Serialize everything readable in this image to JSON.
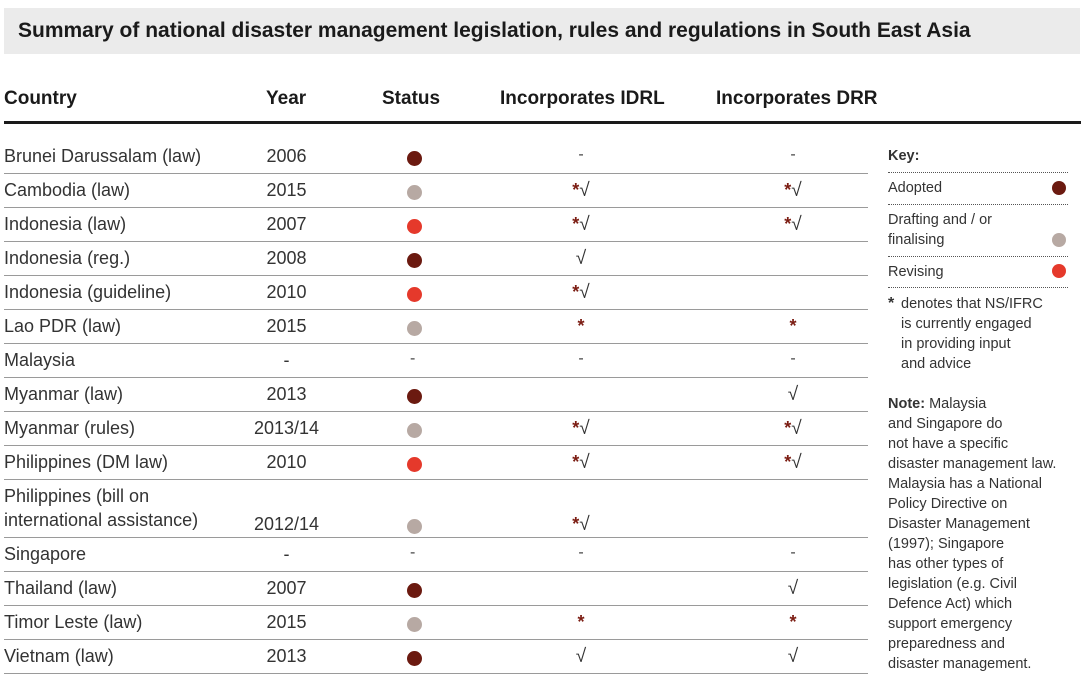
{
  "title": "Summary of national disaster management legislation, rules and regulations in South East Asia",
  "headers": {
    "country": "Country",
    "year": "Year",
    "status": "Status",
    "idrl": "Incorporates IDRL",
    "drr": "Incorporates DRR"
  },
  "colors": {
    "adopted": "#6b1a10",
    "drafting": "#b7a9a3",
    "revising": "#e5392b",
    "star": "#7b1c12"
  },
  "rows": [
    {
      "country": "Brunei Darussalam (law)",
      "year": "2006",
      "status": "adopted",
      "idrl": "-",
      "drr": "-"
    },
    {
      "country": "Cambodia (law)",
      "year": "2015",
      "status": "drafting",
      "idrl": "*√",
      "drr": "*√"
    },
    {
      "country": "Indonesia (law)",
      "year": "2007",
      "status": "revising",
      "idrl": "*√",
      "drr": "*√"
    },
    {
      "country": "Indonesia (reg.)",
      "year": "2008",
      "status": "adopted",
      "idrl": "√",
      "drr": ""
    },
    {
      "country": "Indonesia (guideline)",
      "year": "2010",
      "status": "revising",
      "idrl": "*√",
      "drr": ""
    },
    {
      "country": "Lao PDR (law)",
      "year": "2015",
      "status": "drafting",
      "idrl": "*",
      "drr": "*"
    },
    {
      "country": "Malaysia",
      "year": "-",
      "status": "none",
      "status_text": "-",
      "idrl": "-",
      "drr": "-"
    },
    {
      "country": "Myanmar (law)",
      "year": "2013",
      "status": "adopted",
      "idrl": "",
      "drr": "√"
    },
    {
      "country": "Myanmar (rules)",
      "year": "2013/14",
      "status": "drafting",
      "idrl": "*√",
      "drr": "*√"
    },
    {
      "country": "Philippines (DM law)",
      "year": "2010",
      "status": "revising",
      "idrl": "*√",
      "drr": "*√"
    },
    {
      "country_line1": "Philippines (bill on",
      "country_line2": "international assistance)",
      "year": "2012/14",
      "status": "drafting",
      "idrl": "*√",
      "drr": ""
    },
    {
      "country": "Singapore",
      "year": "-",
      "status": "none",
      "status_text": "-",
      "idrl": "-",
      "drr": "-"
    },
    {
      "country": "Thailand (law)",
      "year": "2007",
      "status": "adopted",
      "idrl": "",
      "drr": "√"
    },
    {
      "country": "Timor Leste (law)",
      "year": "2015",
      "status": "drafting",
      "idrl": "*",
      "drr": "*"
    },
    {
      "country": "Vietnam (law)",
      "year": "2013",
      "status": "adopted",
      "idrl": "√",
      "drr": "√"
    }
  ],
  "key": {
    "heading": "Key:",
    "adopted": "Adopted",
    "drafting_line1": "Drafting and / or",
    "drafting_line2": "finalising",
    "revising": "Revising",
    "star_symbol": "*",
    "star_line1": "denotes that NS/IFRC",
    "star_line2": "is currently engaged",
    "star_line3": "in providing input",
    "star_line4": "and advice"
  },
  "note": {
    "label": "Note:",
    "lines": [
      " Malaysia",
      "and Singapore do",
      "not have a specific",
      "disaster management law.",
      "Malaysia has a National",
      "Policy Directive on",
      "Disaster Management",
      "(1997); Singapore",
      "has other types of",
      "legislation (e.g. Civil",
      "Defence Act) which",
      "support emergency",
      "preparedness and",
      "disaster management."
    ]
  }
}
